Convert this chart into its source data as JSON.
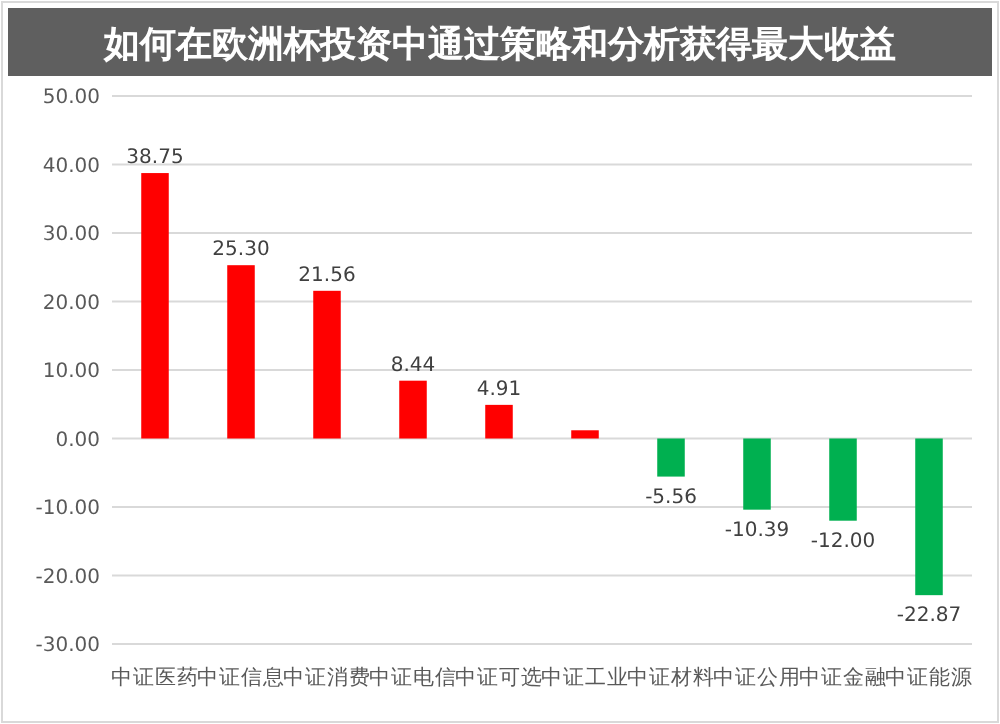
{
  "chart_data": {
    "type": "bar",
    "title": "如何在欧洲杯投资中通过策略和分析获得最大收益",
    "categories": [
      "中证医药",
      "中证信息",
      "中证消费",
      "中证电信",
      "中证可选",
      "中证工业",
      "中证材料",
      "中证公用",
      "中证金融",
      "中证能源"
    ],
    "values": [
      38.75,
      25.3,
      21.56,
      8.44,
      4.91,
      1.2,
      -5.56,
      -10.39,
      -12.0,
      -22.87
    ],
    "colors": [
      "#ff0000",
      "#ff0000",
      "#ff0000",
      "#ff0000",
      "#ff0000",
      "#ff0000",
      "#00b050",
      "#00b050",
      "#00b050",
      "#00b050"
    ],
    "value_labels": [
      "38.75",
      "25.30",
      "21.56",
      "8.44",
      "4.91",
      null,
      "-5.56",
      "-10.39",
      "-12.00",
      "-22.87"
    ],
    "ylim": [
      -30,
      50
    ],
    "yticks": [
      {
        "value": -30,
        "label": "-30.00"
      },
      {
        "value": -20,
        "label": "-20.00"
      },
      {
        "value": -10,
        "label": "-10.00"
      },
      {
        "value": 0,
        "label": "0.00"
      },
      {
        "value": 10,
        "label": "10.00"
      },
      {
        "value": 20,
        "label": "20.00"
      },
      {
        "value": 30,
        "label": "30.00"
      },
      {
        "value": 40,
        "label": "40.00"
      },
      {
        "value": 50,
        "label": "50.00"
      }
    ],
    "grid": "y"
  }
}
